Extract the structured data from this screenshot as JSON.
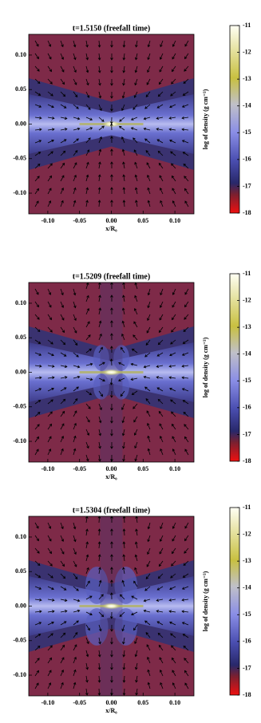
{
  "chart_data": [
    {
      "type": "density-map",
      "title": "t=1.5150 (freefall time)",
      "xlabel": "x/R₀",
      "xlim": [
        -0.13,
        0.13
      ],
      "ylim": [
        -0.13,
        0.13
      ],
      "xticks": [
        {
          "value": -0.1,
          "label": "-0.10"
        },
        {
          "value": -0.05,
          "label": "-0.05"
        },
        {
          "value": 0,
          "label": "0.00"
        },
        {
          "value": 0.05,
          "label": "0.05"
        },
        {
          "value": 0.1,
          "label": "0.10"
        }
      ],
      "yticks": [
        {
          "value": 0.1,
          "label": "0.10"
        },
        {
          "value": 0.05,
          "label": "0.05"
        },
        {
          "value": 0,
          "label": "0.00"
        },
        {
          "value": -0.05,
          "label": "-0.05"
        },
        {
          "value": -0.1,
          "label": "-0.10"
        }
      ],
      "colorbar": {
        "label": "log of density (g cm⁻³)",
        "lim": [
          -18,
          -11
        ],
        "ticks": [
          -11,
          -12,
          -13,
          -14,
          -15,
          -16,
          -17,
          -18
        ]
      }
    },
    {
      "type": "density-map",
      "title": "t=1.5209 (freefall time)",
      "xlabel": "x/R₀",
      "xlim": [
        -0.13,
        0.13
      ],
      "ylim": [
        -0.13,
        0.13
      ],
      "xticks": [
        {
          "value": -0.1,
          "label": "-0.10"
        },
        {
          "value": -0.05,
          "label": "-0.05"
        },
        {
          "value": 0,
          "label": "0.00"
        },
        {
          "value": 0.05,
          "label": "0.05"
        },
        {
          "value": 0.1,
          "label": "0.10"
        }
      ],
      "yticks": [
        {
          "value": 0.1,
          "label": "0.10"
        },
        {
          "value": 0.05,
          "label": "0.05"
        },
        {
          "value": 0,
          "label": "0.00"
        },
        {
          "value": -0.05,
          "label": "-0.05"
        },
        {
          "value": -0.1,
          "label": "-0.10"
        }
      ],
      "colorbar": {
        "label": "log of density (g cm⁻³)",
        "lim": [
          -18,
          -11
        ],
        "ticks": [
          -11,
          -12,
          -13,
          -14,
          -15,
          -16,
          -17,
          -18
        ]
      }
    },
    {
      "type": "density-map",
      "title": "t=1.5304 (freefall time)",
      "xlabel": "x/R₀",
      "xlim": [
        -0.13,
        0.13
      ],
      "ylim": [
        -0.13,
        0.13
      ],
      "xticks": [
        {
          "value": -0.1,
          "label": "-0.10"
        },
        {
          "value": -0.05,
          "label": "-0.05"
        },
        {
          "value": 0,
          "label": "0.00"
        },
        {
          "value": 0.05,
          "label": "0.05"
        },
        {
          "value": 0.1,
          "label": "0.10"
        }
      ],
      "yticks": [
        {
          "value": 0.1,
          "label": "0.10"
        },
        {
          "value": 0.05,
          "label": "0.05"
        },
        {
          "value": 0,
          "label": "0.00"
        },
        {
          "value": -0.05,
          "label": "-0.05"
        },
        {
          "value": -0.1,
          "label": "-0.10"
        }
      ],
      "colorbar": {
        "label": "log of density (g cm⁻³)",
        "lim": [
          -18,
          -11
        ],
        "ticks": [
          -11,
          -12,
          -13,
          -14,
          -15,
          -16,
          -17,
          -18
        ]
      }
    }
  ]
}
